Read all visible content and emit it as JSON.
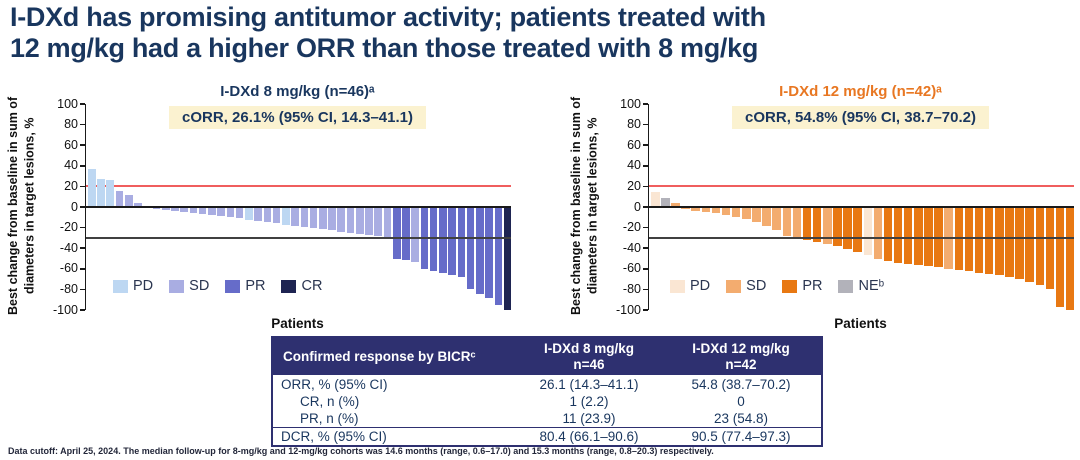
{
  "slide": {
    "title_line1": "I-DXd has promising antitumor activity; patients treated with",
    "title_line2": "12 mg/kg had a higher ORR than those treated with 8 mg/kg",
    "footnote": "Data cutoff: April 25, 2024. The median follow-up for 8-mg/kg and 12-mg/kg cohorts was 14.6 months (range, 0.6–17.0) and 15.3 months (range, 0.8–20.3) respectively."
  },
  "chart_data": [
    {
      "type": "bar",
      "subtype": "waterfall",
      "title": "I-DXd 8 mg/kg (n=46)ᵃ",
      "title_color": "#19365E",
      "badge": "cORR, 26.1% (95% CI, 14.3–41.1)",
      "ylabel_line1": "Best change from baseline in sum of",
      "ylabel_line2": "diameters in target lesions, %",
      "xlabel": "Patients",
      "n": 46,
      "ylim": [
        -100,
        100
      ],
      "yticks": [
        100,
        80,
        60,
        40,
        20,
        0,
        -20,
        -40,
        -60,
        -80,
        -100
      ],
      "reference_lines": [
        {
          "y": 20,
          "color": "#F05E5E",
          "thickness": 2,
          "front": false
        },
        {
          "y": 0,
          "color": "#1a1a1a",
          "thickness": 2,
          "front": true
        },
        {
          "y": -30,
          "color": "#404040",
          "thickness": 1.5,
          "front": true
        }
      ],
      "category_colors": {
        "PD": "#BDD7F2",
        "SD": "#A9ADE2",
        "PR": "#666CC9",
        "CR": "#1E2452"
      },
      "legend": [
        {
          "key": "PD",
          "label": "PD"
        },
        {
          "key": "SD",
          "label": "SD"
        },
        {
          "key": "PR",
          "label": "PR"
        },
        {
          "key": "CR",
          "label": "CR"
        }
      ],
      "bars": [
        {
          "v": 37,
          "r": "PD"
        },
        {
          "v": 27,
          "r": "PD"
        },
        {
          "v": 26,
          "r": "PD"
        },
        {
          "v": 16,
          "r": "SD"
        },
        {
          "v": 12,
          "r": "SD"
        },
        {
          "v": 4,
          "r": "SD"
        },
        {
          "v": -1,
          "r": "SD"
        },
        {
          "v": -2,
          "r": "SD"
        },
        {
          "v": -3,
          "r": "SD"
        },
        {
          "v": -4,
          "r": "SD"
        },
        {
          "v": -5,
          "r": "SD"
        },
        {
          "v": -6,
          "r": "SD"
        },
        {
          "v": -7,
          "r": "SD"
        },
        {
          "v": -8,
          "r": "SD"
        },
        {
          "v": -9,
          "r": "SD"
        },
        {
          "v": -10,
          "r": "SD"
        },
        {
          "v": -11,
          "r": "SD"
        },
        {
          "v": -13,
          "r": "PD"
        },
        {
          "v": -14,
          "r": "SD"
        },
        {
          "v": -15,
          "r": "SD"
        },
        {
          "v": -16,
          "r": "SD"
        },
        {
          "v": -17,
          "r": "PD"
        },
        {
          "v": -18,
          "r": "SD"
        },
        {
          "v": -19,
          "r": "SD"
        },
        {
          "v": -20,
          "r": "SD"
        },
        {
          "v": -21,
          "r": "SD"
        },
        {
          "v": -22,
          "r": "SD"
        },
        {
          "v": -24,
          "r": "SD"
        },
        {
          "v": -25,
          "r": "SD"
        },
        {
          "v": -26,
          "r": "SD"
        },
        {
          "v": -27,
          "r": "SD"
        },
        {
          "v": -28,
          "r": "SD"
        },
        {
          "v": -30,
          "r": "SD"
        },
        {
          "v": -50,
          "r": "PR"
        },
        {
          "v": -51,
          "r": "PR"
        },
        {
          "v": -53,
          "r": "SD"
        },
        {
          "v": -60,
          "r": "PR"
        },
        {
          "v": -62,
          "r": "PR"
        },
        {
          "v": -64,
          "r": "PR"
        },
        {
          "v": -66,
          "r": "PR"
        },
        {
          "v": -68,
          "r": "PR"
        },
        {
          "v": -80,
          "r": "PR"
        },
        {
          "v": -84,
          "r": "PR"
        },
        {
          "v": -88,
          "r": "PR"
        },
        {
          "v": -95,
          "r": "PR"
        },
        {
          "v": -100,
          "r": "CR"
        }
      ]
    },
    {
      "type": "bar",
      "subtype": "waterfall",
      "title": "I-DXd 12 mg/kg (n=42)ᵃ",
      "title_color": "#E87722",
      "badge": "cORR, 54.8% (95% CI, 38.7–70.2)",
      "ylabel_line1": "Best change from baseline in sum of",
      "ylabel_line2": "diameters in target lesions, %",
      "xlabel": "Patients",
      "n": 42,
      "ylim": [
        -100,
        100
      ],
      "yticks": [
        100,
        80,
        60,
        40,
        20,
        0,
        -20,
        -40,
        -60,
        -80,
        -100
      ],
      "reference_lines": [
        {
          "y": 20,
          "color": "#F05E5E",
          "thickness": 2,
          "front": false
        },
        {
          "y": 0,
          "color": "#1a1a1a",
          "thickness": 2,
          "front": true
        },
        {
          "y": -30,
          "color": "#404040",
          "thickness": 1.5,
          "front": true
        }
      ],
      "category_colors": {
        "PD": "#FAE6D3",
        "SD": "#F3AC6F",
        "PR": "#E87812",
        "NE": "#B2B2BA"
      },
      "legend": [
        {
          "key": "PD",
          "label": "PD"
        },
        {
          "key": "SD",
          "label": "SD"
        },
        {
          "key": "PR",
          "label": "PR"
        },
        {
          "key": "NE",
          "label": "NEᵇ"
        }
      ],
      "bars": [
        {
          "v": 15,
          "r": "PD"
        },
        {
          "v": 9,
          "r": "NE"
        },
        {
          "v": 4,
          "r": "SD"
        },
        {
          "v": -2,
          "r": "SD"
        },
        {
          "v": -4,
          "r": "SD"
        },
        {
          "v": -5,
          "r": "SD"
        },
        {
          "v": -6,
          "r": "SD"
        },
        {
          "v": -8,
          "r": "SD"
        },
        {
          "v": -10,
          "r": "SD"
        },
        {
          "v": -12,
          "r": "SD"
        },
        {
          "v": -15,
          "r": "SD"
        },
        {
          "v": -18,
          "r": "SD"
        },
        {
          "v": -22,
          "r": "SD"
        },
        {
          "v": -28,
          "r": "SD"
        },
        {
          "v": -30,
          "r": "SD"
        },
        {
          "v": -32,
          "r": "PR"
        },
        {
          "v": -34,
          "r": "PR"
        },
        {
          "v": -36,
          "r": "SD"
        },
        {
          "v": -38,
          "r": "PR"
        },
        {
          "v": -41,
          "r": "PR"
        },
        {
          "v": -44,
          "r": "PR"
        },
        {
          "v": -47,
          "r": "PD"
        },
        {
          "v": -50,
          "r": "SD"
        },
        {
          "v": -52,
          "r": "PR"
        },
        {
          "v": -54,
          "r": "PR"
        },
        {
          "v": -55,
          "r": "PR"
        },
        {
          "v": -56,
          "r": "PR"
        },
        {
          "v": -57,
          "r": "PR"
        },
        {
          "v": -58,
          "r": "PR"
        },
        {
          "v": -60,
          "r": "SD"
        },
        {
          "v": -61,
          "r": "PR"
        },
        {
          "v": -62,
          "r": "PR"
        },
        {
          "v": -64,
          "r": "PR"
        },
        {
          "v": -65,
          "r": "PR"
        },
        {
          "v": -66,
          "r": "PR"
        },
        {
          "v": -68,
          "r": "PR"
        },
        {
          "v": -70,
          "r": "PR"
        },
        {
          "v": -73,
          "r": "PR"
        },
        {
          "v": -76,
          "r": "PR"
        },
        {
          "v": -80,
          "r": "PR"
        },
        {
          "v": -97,
          "r": "PR"
        },
        {
          "v": -100,
          "r": "PR"
        }
      ]
    }
  ],
  "table": {
    "header": [
      "Confirmed response by BICRᶜ",
      "I-DXd 8 mg/kg",
      "I-DXd 12 mg/kg"
    ],
    "header_sub": [
      "",
      "n=46",
      "n=42"
    ],
    "rows": [
      {
        "label": "ORR, % (95% CI)",
        "col8": "26.1 (14.3–41.1)",
        "col12": "54.8 (38.7–70.2)"
      },
      {
        "label": "CR, n (%)",
        "col8": "1 (2.2)",
        "col12": "0"
      },
      {
        "label": "PR, n (%)",
        "col8": "11 (23.9)",
        "col12": "23 (54.8)"
      },
      {
        "label": "DCR, % (95% CI)",
        "col8": "80.4 (66.1–90.6)",
        "col12": "90.5 (77.4–97.3)"
      }
    ]
  }
}
